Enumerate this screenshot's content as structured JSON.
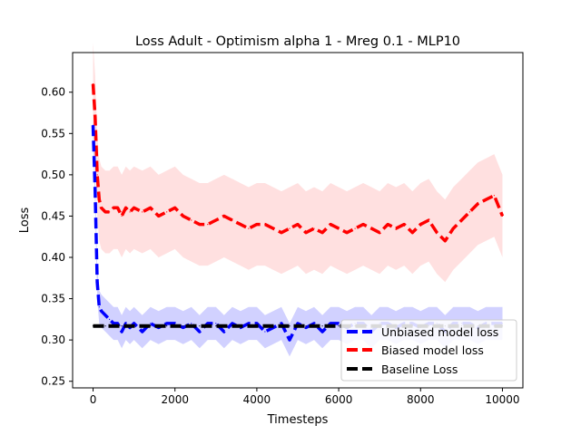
{
  "chart_data": {
    "type": "line",
    "title": "Loss Adult - Optimism alpha 1 - Mreg 0.1 - MLP10",
    "xlabel": "Timesteps",
    "ylabel": "Loss",
    "xlim": [
      -500,
      10500
    ],
    "ylim": [
      0.242,
      0.648
    ],
    "x_ticks": [
      0,
      2000,
      4000,
      6000,
      8000,
      10000
    ],
    "y_ticks": [
      0.25,
      0.3,
      0.35,
      0.4,
      0.45,
      0.5,
      0.55,
      0.6
    ],
    "grid": false,
    "legend_position": "lower right",
    "x": [
      0,
      50,
      100,
      150,
      200,
      300,
      400,
      500,
      600,
      700,
      800,
      900,
      1000,
      1200,
      1400,
      1600,
      1800,
      2000,
      2200,
      2400,
      2600,
      2800,
      3000,
      3200,
      3400,
      3600,
      3800,
      4000,
      4200,
      4400,
      4600,
      4800,
      5000,
      5200,
      5400,
      5600,
      5800,
      6000,
      6200,
      6400,
      6600,
      6800,
      7000,
      7200,
      7400,
      7600,
      7800,
      8000,
      8200,
      8400,
      8600,
      8800,
      9000,
      9200,
      9400,
      9600,
      9800,
      10000
    ],
    "series": [
      {
        "name": "Unbiased model loss",
        "color": "#0000ff",
        "style": "dashed",
        "values": [
          0.56,
          0.48,
          0.37,
          0.34,
          0.335,
          0.33,
          0.325,
          0.32,
          0.32,
          0.31,
          0.32,
          0.315,
          0.32,
          0.31,
          0.32,
          0.315,
          0.32,
          0.32,
          0.315,
          0.32,
          0.31,
          0.32,
          0.32,
          0.31,
          0.32,
          0.315,
          0.32,
          0.32,
          0.31,
          0.315,
          0.32,
          0.3,
          0.32,
          0.315,
          0.32,
          0.31,
          0.32,
          0.32,
          0.315,
          0.32,
          0.32,
          0.31,
          0.32,
          0.32,
          0.315,
          0.32,
          0.32,
          0.315,
          0.32,
          0.32,
          0.31,
          0.32,
          0.32,
          0.32,
          0.315,
          0.32,
          0.32,
          0.32
        ],
        "band": 0.02,
        "band_color": "#ccccff"
      },
      {
        "name": "Biased model loss",
        "color": "#ff0000",
        "style": "dashed",
        "values": [
          0.61,
          0.57,
          0.5,
          0.47,
          0.46,
          0.455,
          0.455,
          0.46,
          0.46,
          0.45,
          0.46,
          0.455,
          0.46,
          0.455,
          0.46,
          0.45,
          0.455,
          0.46,
          0.45,
          0.445,
          0.44,
          0.44,
          0.445,
          0.45,
          0.445,
          0.44,
          0.435,
          0.44,
          0.44,
          0.435,
          0.43,
          0.435,
          0.44,
          0.43,
          0.435,
          0.43,
          0.44,
          0.435,
          0.43,
          0.435,
          0.44,
          0.435,
          0.43,
          0.44,
          0.435,
          0.44,
          0.43,
          0.44,
          0.445,
          0.43,
          0.42,
          0.435,
          0.445,
          0.455,
          0.465,
          0.47,
          0.475,
          0.45
        ],
        "band": 0.05,
        "band_color": "#ffdddd"
      },
      {
        "name": "Baseline Loss",
        "color": "#000000",
        "style": "dashed",
        "values": [
          0.317,
          0.317,
          0.317,
          0.317,
          0.317,
          0.317,
          0.317,
          0.317,
          0.317,
          0.317,
          0.317,
          0.317,
          0.317,
          0.317,
          0.317,
          0.317,
          0.317,
          0.317,
          0.317,
          0.317,
          0.317,
          0.317,
          0.317,
          0.317,
          0.317,
          0.317,
          0.317,
          0.317,
          0.317,
          0.317,
          0.317,
          0.317,
          0.317,
          0.317,
          0.317,
          0.317,
          0.317,
          0.317,
          0.317,
          0.317,
          0.317,
          0.317,
          0.317,
          0.317,
          0.317,
          0.317,
          0.317,
          0.317,
          0.317,
          0.317,
          0.317,
          0.317,
          0.317,
          0.317,
          0.317,
          0.317,
          0.317,
          0.317
        ]
      }
    ]
  }
}
